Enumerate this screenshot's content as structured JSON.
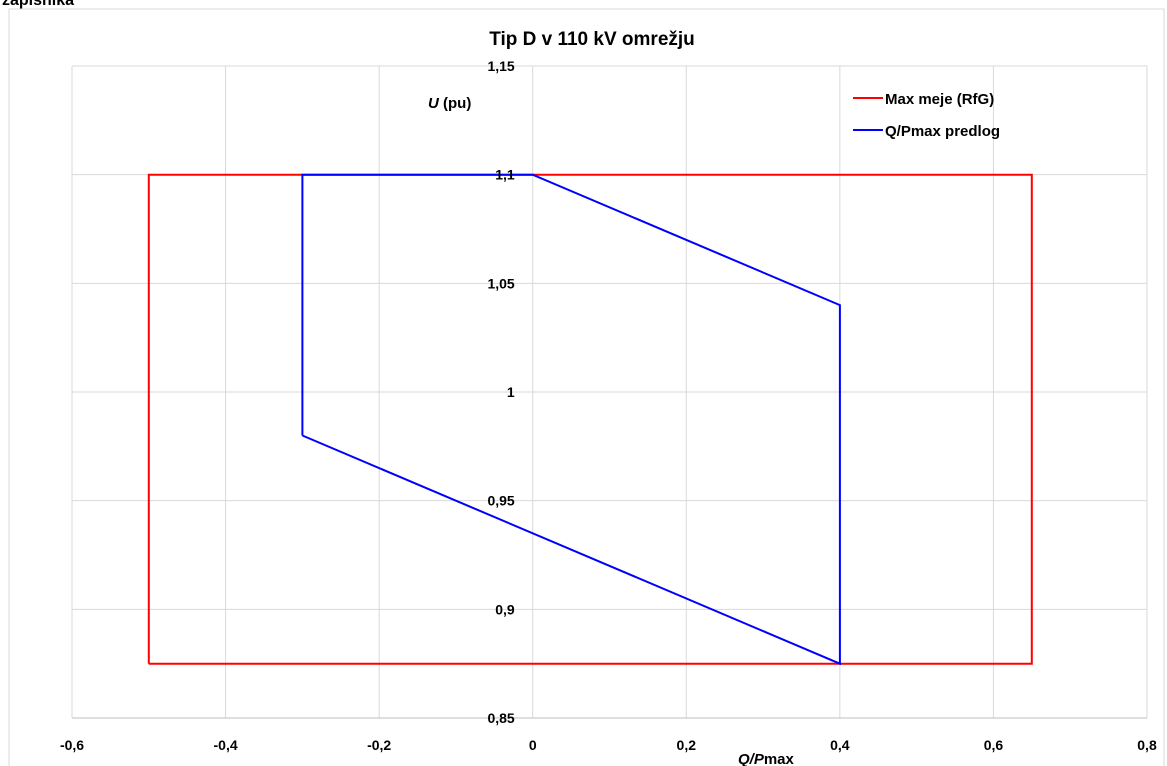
{
  "top_fragment": "zapisnika",
  "chart_data": {
    "type": "line",
    "title": "Tip D v 110 kV omrežju",
    "ylabel": {
      "italic": "U",
      "rest": " (pu)"
    },
    "xlabel": {
      "italic": "Q/P",
      "rest": "max"
    },
    "xlim": [
      -0.6,
      0.8
    ],
    "ylim": [
      0.85,
      1.15
    ],
    "xticks": [
      -0.6,
      -0.4,
      -0.2,
      0,
      0.2,
      0.4,
      0.6,
      0.8
    ],
    "xtick_labels": [
      "-0,6",
      "-0,4",
      "-0,2",
      "0",
      "0,2",
      "0,4",
      "0,6",
      "0,8"
    ],
    "yticks": [
      0.85,
      0.9,
      0.95,
      1.0,
      1.05,
      1.1,
      1.15
    ],
    "ytick_labels": [
      "0,85",
      "0,9",
      "0,95",
      "1",
      "1,05",
      "1,1",
      "1,15"
    ],
    "grid": true,
    "legend_position": "top-right",
    "series": [
      {
        "name": "Max meje (RfG)",
        "color": "#ff0000",
        "points": [
          [
            -0.5,
            0.875
          ],
          [
            -0.5,
            1.1
          ],
          [
            0.65,
            1.1
          ],
          [
            0.65,
            0.875
          ],
          [
            -0.5,
            0.875
          ]
        ]
      },
      {
        "name": "Q/Pmax predlog",
        "color": "#0000ff",
        "points": [
          [
            -0.3,
            0.98
          ],
          [
            -0.3,
            1.1
          ],
          [
            0,
            1.1
          ],
          [
            0.4,
            1.04
          ],
          [
            0.4,
            0.875
          ],
          [
            -0.3,
            0.98
          ]
        ]
      }
    ]
  }
}
